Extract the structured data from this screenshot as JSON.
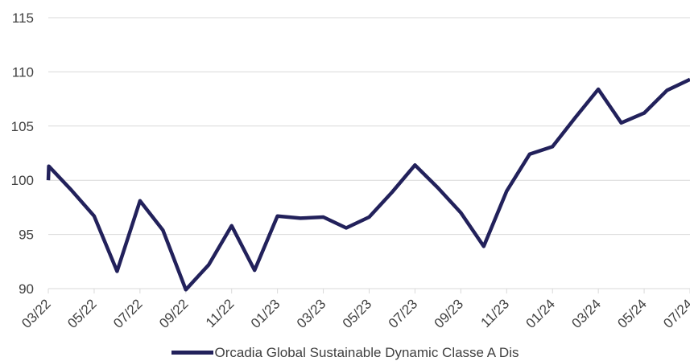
{
  "chart_data": {
    "type": "line",
    "title": "",
    "xlabel": "",
    "ylabel": "",
    "ylim": [
      90,
      115
    ],
    "yticks": [
      90,
      95,
      100,
      105,
      110,
      115
    ],
    "grid": true,
    "legend_position": "bottom",
    "line_color": "#22215b",
    "x_tick_labels": [
      "03/22",
      "05/22",
      "07/22",
      "09/22",
      "11/22",
      "01/23",
      "03/23",
      "05/23",
      "07/23",
      "09/23",
      "11/23",
      "01/24",
      "03/24",
      "05/24",
      "07/24"
    ],
    "series": [
      {
        "name": "Orcadia Global Sustainable Dynamic Classe A Dis",
        "x": [
          0,
          0.02,
          1,
          2,
          3,
          4,
          5,
          6,
          7,
          8,
          9,
          10,
          11,
          12,
          13,
          14,
          15,
          16,
          17,
          18,
          19,
          20,
          21,
          22,
          23,
          24,
          25,
          26,
          27,
          28
        ],
        "values": [
          100,
          101.3,
          99.1,
          96.7,
          91.6,
          98.1,
          95.4,
          89.9,
          92.2,
          95.8,
          91.7,
          96.7,
          96.5,
          96.6,
          95.6,
          96.6,
          98.9,
          101.4,
          99.3,
          97.0,
          93.9,
          99.0,
          102.4,
          103.1,
          105.8,
          108.4,
          105.3,
          106.2,
          108.3,
          109.3
        ]
      }
    ]
  }
}
